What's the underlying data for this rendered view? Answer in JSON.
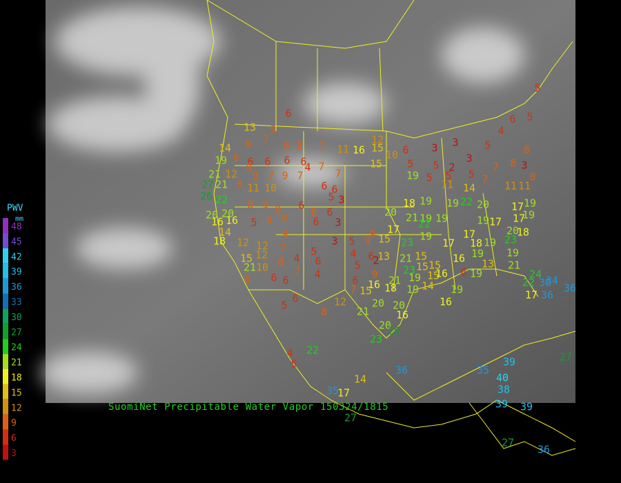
{
  "legend": {
    "title": "PWV",
    "unit": "mm",
    "levels": [
      {
        "value": 48,
        "color": "#9030c0"
      },
      {
        "value": 45,
        "color": "#7050d0"
      },
      {
        "value": 42,
        "color": "#30d0f0"
      },
      {
        "value": 39,
        "color": "#20c0e8"
      },
      {
        "value": 36,
        "color": "#2098d8"
      },
      {
        "value": 33,
        "color": "#1070b8"
      },
      {
        "value": 30,
        "color": "#10a060"
      },
      {
        "value": 27,
        "color": "#10a030"
      },
      {
        "value": 24,
        "color": "#20d020"
      },
      {
        "value": 21,
        "color": "#a0e020"
      },
      {
        "value": 18,
        "color": "#f0f020"
      },
      {
        "value": 15,
        "color": "#e0c010"
      },
      {
        "value": 12,
        "color": "#d09010"
      },
      {
        "value": 9,
        "color": "#e06010"
      },
      {
        "value": 6,
        "color": "#d03010"
      },
      {
        "value": 3,
        "color": "#c01010"
      }
    ]
  },
  "caption": "SuomiNet Precipitable Water Vapor 150324/1815",
  "stations": [
    6,
    13,
    9,
    7,
    9,
    8,
    8,
    7,
    11,
    16,
    12,
    15,
    10,
    6,
    14,
    19,
    9,
    6,
    6,
    6,
    6,
    4,
    7,
    7,
    15,
    5,
    3,
    3,
    5,
    2,
    3,
    5,
    4,
    6,
    5,
    5,
    8,
    7,
    8,
    3,
    8,
    21,
    12,
    8,
    9,
    7,
    9,
    7,
    19,
    5,
    5,
    5,
    7,
    11,
    11,
    11,
    14,
    27,
    21,
    8,
    11,
    10,
    6,
    6,
    26,
    22,
    5,
    3,
    8,
    9,
    6,
    20,
    18,
    19,
    19,
    22,
    20,
    17,
    19,
    20,
    20,
    9,
    8,
    6,
    16,
    16,
    5,
    9,
    9,
    6,
    3,
    21,
    19,
    19,
    19,
    17,
    17,
    19,
    14,
    9,
    9,
    17,
    22,
    17,
    20,
    18,
    18,
    12,
    12,
    7,
    3,
    5,
    9,
    15,
    23,
    19,
    17,
    18,
    19,
    23,
    12,
    15,
    5,
    4,
    6,
    13,
    21,
    15,
    16,
    19,
    19,
    10,
    21,
    8,
    4,
    6,
    5,
    2,
    23,
    15,
    15,
    21,
    8,
    6,
    6,
    7,
    4,
    6,
    9,
    21,
    19,
    15,
    16,
    6,
    19,
    13,
    24,
    7,
    15,
    16,
    18,
    19,
    14,
    19,
    22,
    36,
    34,
    36,
    6,
    5,
    12,
    20,
    20,
    16,
    17,
    36,
    8,
    21,
    16,
    20,
    26,
    23,
    4,
    5,
    22,
    27,
    14,
    36,
    35,
    39,
    35,
    17,
    40,
    38,
    39,
    39,
    27,
    27,
    36
  ]
}
